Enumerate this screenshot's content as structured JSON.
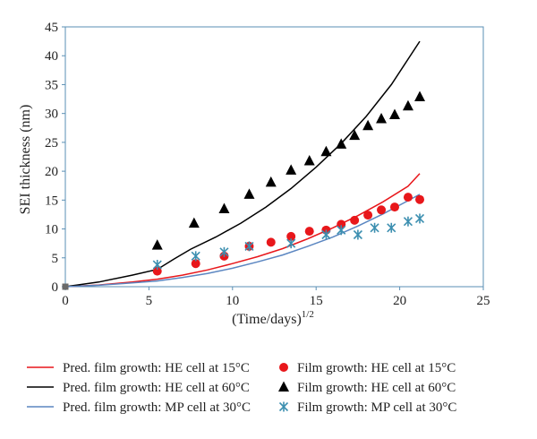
{
  "chart_data": {
    "type": "scatter",
    "title": "",
    "xlabel_base": "(Time/days)",
    "xlabel_sup": "1/2",
    "ylabel": "SEI thickness (nm)",
    "xlim": [
      0,
      25
    ],
    "ylim": [
      0,
      45
    ],
    "xticks": [
      "0",
      "5",
      "10",
      "15",
      "20",
      "25"
    ],
    "yticks": [
      "0",
      "5",
      "10",
      "15",
      "20",
      "25",
      "30",
      "35",
      "40",
      "45"
    ],
    "grid": false,
    "legend_position": "bottom",
    "colors": {
      "red": "#e8171b",
      "black": "#000000",
      "blue": "#5b86c1",
      "teal": "#3c8fb0",
      "axis": "#5a8fb4"
    },
    "lines": [
      {
        "name": "Pred. film growth: HE cell at 15°C",
        "color": "#e8171b",
        "x": [
          0,
          2,
          4,
          5.5,
          7,
          8.5,
          10,
          11.5,
          13,
          14.5,
          16,
          17.5,
          19,
          20.5,
          21.2
        ],
        "y": [
          0,
          0.3,
          0.8,
          1.3,
          2.0,
          2.9,
          4.0,
          5.2,
          6.6,
          8.3,
          10.2,
          12.3,
          14.7,
          17.4,
          19.6
        ]
      },
      {
        "name": "Pred. film growth: HE cell at 60°C",
        "color": "#000000",
        "x": [
          0,
          2,
          4,
          5.5,
          6.5,
          7.5,
          9,
          10.5,
          12,
          13.5,
          15,
          16.5,
          18,
          19.5,
          21.2
        ],
        "y": [
          0,
          0.8,
          2.0,
          3.0,
          4.8,
          6.5,
          8.6,
          11.0,
          13.8,
          17.0,
          20.7,
          24.8,
          29.5,
          35.0,
          42.5
        ]
      },
      {
        "name": "Pred. film growth: MP cell at 30°C",
        "color": "#5b86c1",
        "x": [
          0,
          2,
          4,
          5.5,
          7,
          8.5,
          10,
          11.5,
          13,
          14.5,
          16,
          17.5,
          19,
          20.5,
          21.2
        ],
        "y": [
          0,
          0.25,
          0.65,
          1.0,
          1.6,
          2.3,
          3.2,
          4.3,
          5.5,
          7.0,
          8.6,
          10.5,
          12.6,
          14.9,
          16.0
        ]
      }
    ],
    "points": [
      {
        "name": "Film growth: HE cell at 15°C",
        "marker": "circle",
        "color": "#e8171b",
        "x": [
          0,
          5.5,
          7.8,
          9.5,
          11,
          12.3,
          13.5,
          14.6,
          15.6,
          16.5,
          17.3,
          18.1,
          18.9,
          19.7,
          20.5,
          21.2
        ],
        "y": [
          0,
          2.7,
          4.0,
          5.3,
          7.0,
          7.7,
          8.7,
          9.6,
          9.8,
          10.8,
          11.5,
          12.4,
          13.3,
          13.8,
          15.5,
          15.1
        ]
      },
      {
        "name": "Film growth: HE cell at 60°C",
        "marker": "triangle",
        "color": "#000000",
        "x": [
          0,
          5.5,
          7.7,
          9.5,
          11,
          12.3,
          13.5,
          14.6,
          15.6,
          16.5,
          17.3,
          18.1,
          18.9,
          19.7,
          20.5,
          21.2
        ],
        "y": [
          0,
          7.2,
          11.0,
          13.5,
          16.0,
          18.1,
          20.2,
          21.8,
          23.4,
          24.7,
          26.2,
          27.9,
          29.1,
          29.8,
          31.3,
          32.9
        ]
      },
      {
        "name": "Film growth: MP cell at 30°C",
        "marker": "asterisk",
        "color": "#3c8fb0",
        "x": [
          0,
          5.5,
          7.8,
          9.5,
          11,
          13.5,
          15.6,
          16.5,
          17.5,
          18.5,
          19.5,
          20.5,
          21.2
        ],
        "y": [
          0,
          3.8,
          5.3,
          6.0,
          7.0,
          7.5,
          9.0,
          9.8,
          9.0,
          10.2,
          10.2,
          11.3,
          11.8
        ]
      }
    ]
  },
  "legend": [
    {
      "label": "Pred. film growth: HE cell at 15°C",
      "kind": "line",
      "color": "#e8171b"
    },
    {
      "label": "Film growth: HE cell at 15°C",
      "kind": "circle",
      "color": "#e8171b"
    },
    {
      "label": "Pred. film growth: HE cell at 60°C",
      "kind": "line",
      "color": "#000000"
    },
    {
      "label": "Film growth: HE cell at 60°C",
      "kind": "triangle",
      "color": "#000000"
    },
    {
      "label": "Pred. film growth: MP cell at 30°C",
      "kind": "line",
      "color": "#5b86c1"
    },
    {
      "label": "Film growth: MP cell at 30°C",
      "kind": "asterisk",
      "color": "#3c8fb0"
    }
  ]
}
